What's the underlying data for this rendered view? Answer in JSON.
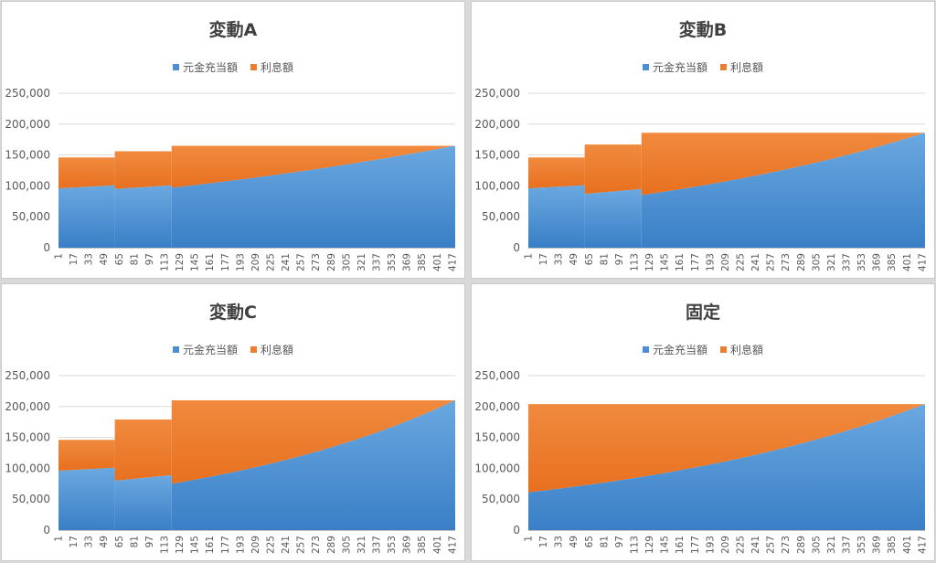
{
  "colors": {
    "principal": "#4a8fd4",
    "interest": "#ed7d31",
    "grid": "#d9d9d9",
    "axis": "#bfbfbf"
  },
  "legend": {
    "principal_label": "元金充当額",
    "interest_label": "利息額"
  },
  "x_tick_labels": [
    "1",
    "17",
    "33",
    "49",
    "65",
    "81",
    "97",
    "113",
    "129",
    "145",
    "161",
    "177",
    "193",
    "209",
    "225",
    "241",
    "257",
    "273",
    "289",
    "305",
    "321",
    "337",
    "353",
    "369",
    "385",
    "401",
    "417"
  ],
  "y_tick_labels": [
    "0",
    "50,000",
    "100,000",
    "150,000",
    "200,000",
    "250,000"
  ],
  "chart_data": [
    {
      "title": "変動A",
      "type": "area",
      "stacked": true,
      "x_range": [
        1,
        420
      ],
      "ylim": [
        0,
        250000
      ],
      "x_tick_step": 16,
      "legend_position": "top",
      "grid": true,
      "segments": [
        {
          "x_start": 1,
          "x_end": 60,
          "total": 146000,
          "principal_start": 96000,
          "principal_end": 101000
        },
        {
          "x_start": 61,
          "x_end": 120,
          "total": 156000,
          "principal_start": 95000,
          "principal_end": 101000
        },
        {
          "x_start": 121,
          "x_end": 420,
          "total": 165000,
          "principal_start": 97000,
          "principal_end": 165000
        }
      ]
    },
    {
      "title": "変動B",
      "type": "area",
      "stacked": true,
      "x_range": [
        1,
        420
      ],
      "ylim": [
        0,
        250000
      ],
      "x_tick_step": 16,
      "legend_position": "top",
      "grid": true,
      "segments": [
        {
          "x_start": 1,
          "x_end": 60,
          "total": 146000,
          "principal_start": 96000,
          "principal_end": 101000
        },
        {
          "x_start": 61,
          "x_end": 120,
          "total": 167000,
          "principal_start": 87000,
          "principal_end": 95000
        },
        {
          "x_start": 121,
          "x_end": 420,
          "total": 186000,
          "principal_start": 85000,
          "principal_end": 186000
        }
      ]
    },
    {
      "title": "変動C",
      "type": "area",
      "stacked": true,
      "x_range": [
        1,
        420
      ],
      "ylim": [
        0,
        250000
      ],
      "x_tick_step": 16,
      "legend_position": "top",
      "grid": true,
      "segments": [
        {
          "x_start": 1,
          "x_end": 60,
          "total": 146000,
          "principal_start": 96000,
          "principal_end": 101000
        },
        {
          "x_start": 61,
          "x_end": 120,
          "total": 179000,
          "principal_start": 80000,
          "principal_end": 89000
        },
        {
          "x_start": 121,
          "x_end": 420,
          "total": 210000,
          "principal_start": 75000,
          "principal_end": 210000
        }
      ]
    },
    {
      "title": "固定",
      "type": "area",
      "stacked": true,
      "x_range": [
        1,
        420
      ],
      "ylim": [
        0,
        250000
      ],
      "x_tick_step": 16,
      "legend_position": "top",
      "grid": true,
      "segments": [
        {
          "x_start": 1,
          "x_end": 420,
          "total": 204000,
          "principal_start": 61000,
          "principal_end": 204000
        }
      ]
    }
  ]
}
